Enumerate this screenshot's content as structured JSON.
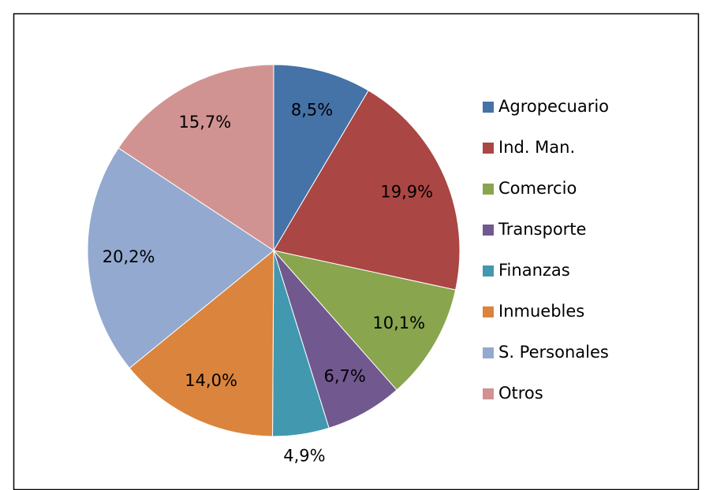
{
  "chart_data": {
    "type": "pie",
    "categories": [
      "Agropecuario",
      "Ind. Man.",
      "Comercio",
      "Transporte",
      "Finanzas",
      "Inmuebles",
      "S. Personales",
      "Otros"
    ],
    "values": [
      8.5,
      19.9,
      10.1,
      6.7,
      4.9,
      14.0,
      20.2,
      15.7
    ],
    "value_labels": [
      "8,5%",
      "19,9%",
      "10,1%",
      "6,7%",
      "4,9%",
      "14,0%",
      "20,2%",
      "15,7%"
    ],
    "colors": [
      "#4572a7",
      "#aa4643",
      "#89a54e",
      "#71588f",
      "#4198af",
      "#db843d",
      "#93a9cf",
      "#d19392"
    ],
    "legend": "right"
  }
}
